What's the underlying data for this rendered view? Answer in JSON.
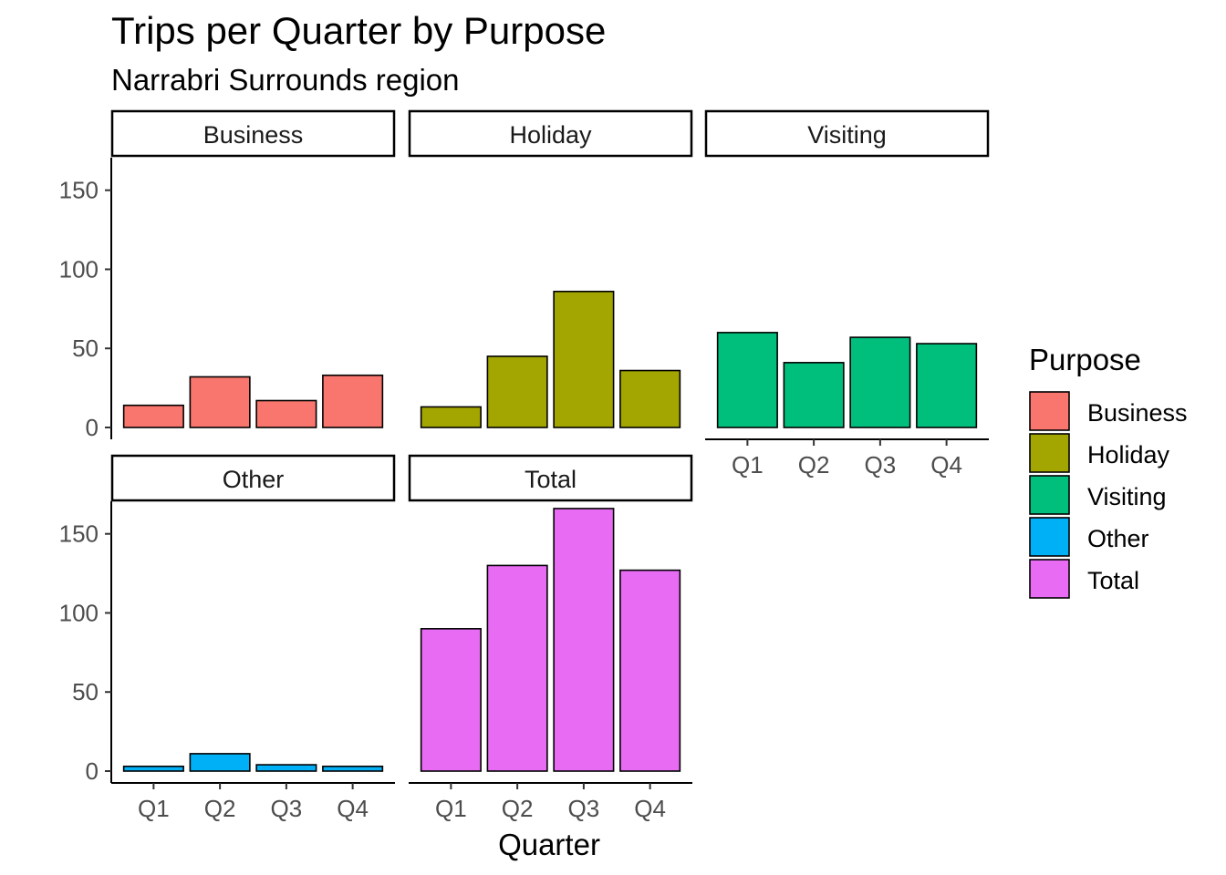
{
  "chart_data": {
    "type": "bar",
    "title": "Trips per Quarter by Purpose",
    "subtitle": "Narrabri Surrounds region",
    "xlabel": "Quarter",
    "ylabel": "",
    "categories": [
      "Q1",
      "Q2",
      "Q3",
      "Q4"
    ],
    "ylim": [
      0,
      170
    ],
    "yticks": [
      0,
      50,
      100,
      150
    ],
    "legend": {
      "title": "Purpose",
      "position": "right"
    },
    "series": [
      {
        "name": "Business",
        "color": "#F8766D",
        "values": [
          14,
          32,
          17,
          33
        ]
      },
      {
        "name": "Holiday",
        "color": "#A3A500",
        "values": [
          13,
          45,
          86,
          36
        ]
      },
      {
        "name": "Visiting",
        "color": "#00BF7D",
        "values": [
          60,
          41,
          57,
          53
        ]
      },
      {
        "name": "Other",
        "color": "#00B0F6",
        "values": [
          3,
          11,
          4,
          3
        ]
      },
      {
        "name": "Total",
        "color": "#E76BF3",
        "values": [
          90,
          130,
          166,
          127
        ]
      }
    ]
  }
}
